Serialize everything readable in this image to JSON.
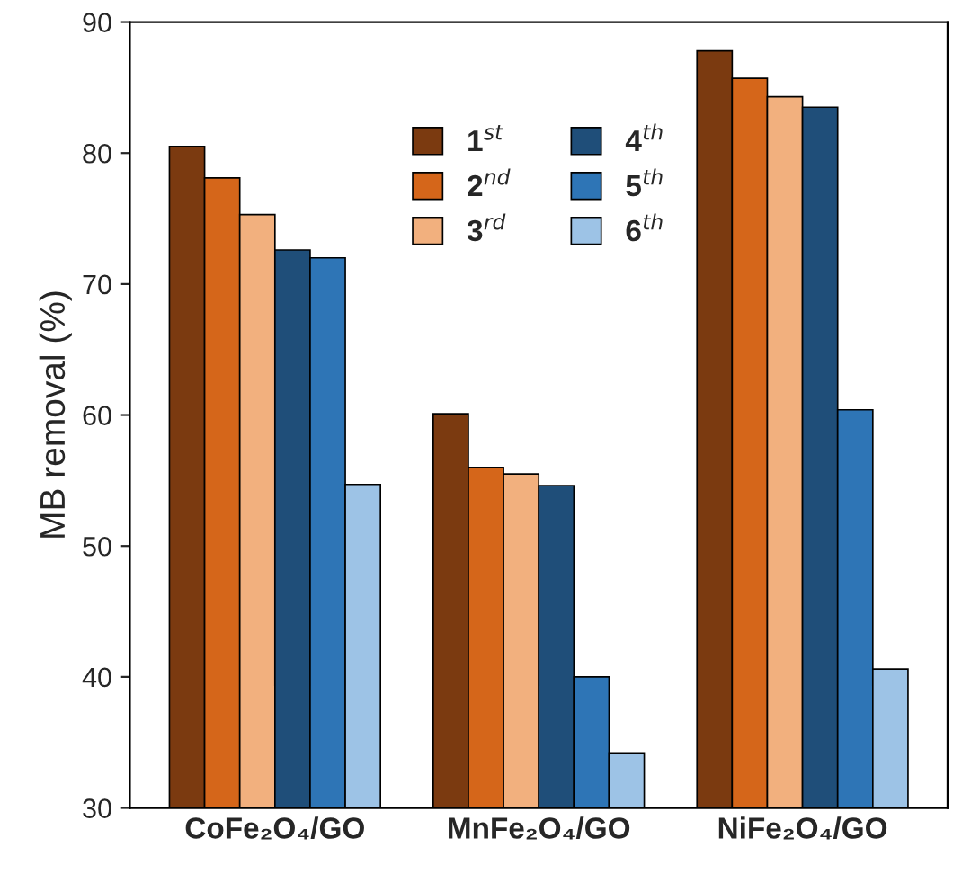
{
  "chart_data": {
    "type": "bar",
    "ylabel": "MB removal (%)",
    "categories": [
      "CoFe₂O₄/GO",
      "MnFe₂O₄/GO",
      "NiFe₂O₄/GO"
    ],
    "series": [
      {
        "name": "1$^{st}$",
        "color": "#7b3a10",
        "values": [
          80.5,
          60.1,
          87.8
        ]
      },
      {
        "name": "2$^{nd}$",
        "color": "#d5661a",
        "values": [
          78.1,
          56.0,
          85.7
        ]
      },
      {
        "name": "3$^{rd}$",
        "color": "#f2b07e",
        "values": [
          75.3,
          55.5,
          84.3
        ]
      },
      {
        "name": "4$^{th}$",
        "color": "#1f4e79",
        "values": [
          72.6,
          54.6,
          83.5
        ]
      },
      {
        "name": "5$^{th}$",
        "color": "#2e75b6",
        "values": [
          72.0,
          40.0,
          60.4
        ]
      },
      {
        "name": "6$^{th}$",
        "color": "#9dc3e6",
        "values": [
          54.7,
          34.2,
          40.6
        ]
      }
    ],
    "ylim": [
      30,
      90
    ],
    "yticks": [
      30,
      40,
      50,
      60,
      70,
      80,
      90
    ],
    "grid": false,
    "legend": "top"
  }
}
